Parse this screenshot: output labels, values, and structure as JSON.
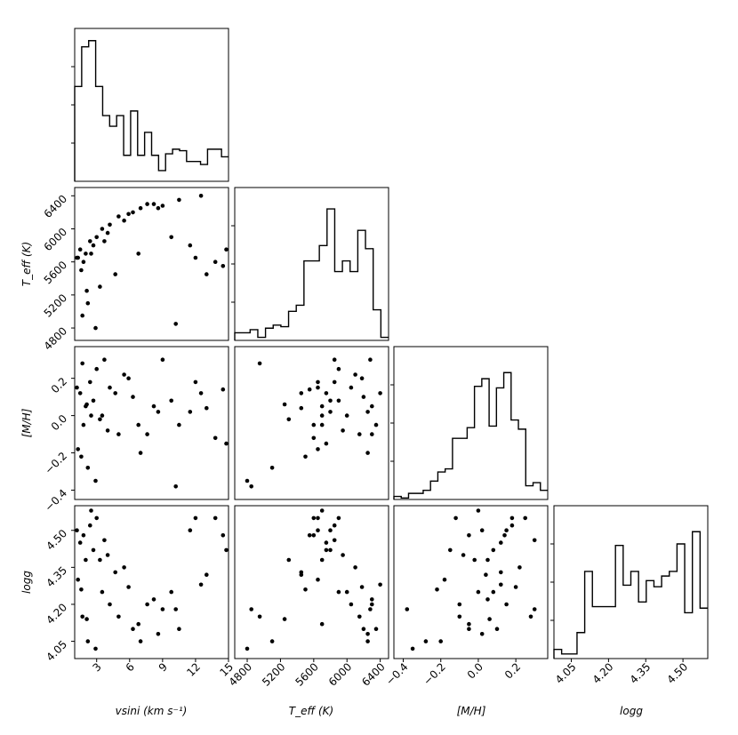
{
  "chart_data": {
    "type": "corner",
    "parameters": [
      {
        "key": "vsini",
        "label": "vsini (km s⁻¹)",
        "range": [
          1,
          15
        ],
        "ticks": [
          3,
          6,
          9,
          12,
          15
        ]
      },
      {
        "key": "teff",
        "label": "T_eff (K)",
        "range": [
          4650,
          6500
        ],
        "ticks": [
          4800,
          5200,
          5600,
          6000,
          6400
        ]
      },
      {
        "key": "mh",
        "label": "[M/H]",
        "range": [
          -0.45,
          0.37
        ],
        "ticks": [
          -0.4,
          -0.2,
          0.0,
          0.2
        ]
      },
      {
        "key": "logg",
        "label": "logg",
        "range": [
          3.98,
          4.6
        ],
        "ticks": [
          4.05,
          4.2,
          4.35,
          4.5
        ]
      }
    ],
    "tick_text": {
      "vsini": [
        "3",
        "6",
        "9",
        "12",
        "15"
      ],
      "teff": [
        "4800",
        "5200",
        "5600",
        "6000",
        "6400"
      ],
      "mh": [
        "−0.4",
        "−0.2",
        "0.0",
        "0.2"
      ],
      "logg": [
        "4.05",
        "4.20",
        "4.35",
        "4.50"
      ]
    },
    "histograms": {
      "vsini": [
        0.62,
        0.88,
        0.92,
        0.62,
        0.43,
        0.36,
        0.43,
        0.17,
        0.46,
        0.17,
        0.32,
        0.17,
        0.07,
        0.18,
        0.21,
        0.2,
        0.13,
        0.13,
        0.11,
        0.21,
        0.21,
        0.16
      ],
      "teff": [
        0.05,
        0.05,
        0.07,
        0.02,
        0.08,
        0.1,
        0.09,
        0.19,
        0.23,
        0.52,
        0.52,
        0.62,
        0.86,
        0.45,
        0.52,
        0.45,
        0.72,
        0.6,
        0.2,
        0.02
      ],
      "mh": [
        0.02,
        0.01,
        0.04,
        0.04,
        0.06,
        0.12,
        0.18,
        0.2,
        0.4,
        0.4,
        0.47,
        0.74,
        0.79,
        0.48,
        0.73,
        0.83,
        0.52,
        0.46,
        0.09,
        0.11,
        0.06
      ],
      "logg": [
        0.06,
        0.03,
        0.03,
        0.17,
        0.57,
        0.34,
        0.34,
        0.34,
        0.74,
        0.48,
        0.57,
        0.37,
        0.51,
        0.47,
        0.54,
        0.57,
        0.75,
        0.3,
        0.83,
        0.33
      ]
    },
    "samples": [
      {
        "vsini": 1.5,
        "teff": 5750,
        "mh": 0.12,
        "logg": 4.45
      },
      {
        "vsini": 2.0,
        "teff": 5700,
        "mh": 0.05,
        "logg": 4.38
      },
      {
        "vsini": 2.4,
        "teff": 5850,
        "mh": 0.18,
        "logg": 4.52
      },
      {
        "vsini": 1.8,
        "teff": 5600,
        "mh": -0.05,
        "logg": 4.48
      },
      {
        "vsini": 3.0,
        "teff": 5900,
        "mh": 0.25,
        "logg": 4.55
      },
      {
        "vsini": 2.7,
        "teff": 5800,
        "mh": 0.08,
        "logg": 4.42
      },
      {
        "vsini": 1.3,
        "teff": 5650,
        "mh": -0.18,
        "logg": 4.3
      },
      {
        "vsini": 3.5,
        "teff": 6000,
        "mh": 0.0,
        "logg": 4.25
      },
      {
        "vsini": 4.2,
        "teff": 6050,
        "mh": 0.15,
        "logg": 4.2
      },
      {
        "vsini": 5.0,
        "teff": 6150,
        "mh": -0.1,
        "logg": 4.15
      },
      {
        "vsini": 5.5,
        "teff": 6100,
        "mh": 0.22,
        "logg": 4.35
      },
      {
        "vsini": 6.3,
        "teff": 6200,
        "mh": 0.1,
        "logg": 4.1
      },
      {
        "vsini": 7.0,
        "teff": 6250,
        "mh": -0.2,
        "logg": 4.05
      },
      {
        "vsini": 8.2,
        "teff": 6300,
        "mh": 0.05,
        "logg": 4.22
      },
      {
        "vsini": 9.0,
        "teff": 6280,
        "mh": 0.3,
        "logg": 4.18
      },
      {
        "vsini": 10.5,
        "teff": 6350,
        "mh": -0.05,
        "logg": 4.1
      },
      {
        "vsini": 12.5,
        "teff": 6400,
        "mh": 0.12,
        "logg": 4.28
      },
      {
        "vsini": 13.8,
        "teff": 5600,
        "mh": -0.12,
        "logg": 4.55
      },
      {
        "vsini": 14.5,
        "teff": 5550,
        "mh": 0.14,
        "logg": 4.48
      },
      {
        "vsini": 11.5,
        "teff": 5800,
        "mh": 0.02,
        "logg": 4.5
      },
      {
        "vsini": 2.2,
        "teff": 5100,
        "mh": -0.28,
        "logg": 4.05
      },
      {
        "vsini": 1.7,
        "teff": 4950,
        "mh": 0.28,
        "logg": 4.15
      },
      {
        "vsini": 2.9,
        "teff": 4800,
        "mh": -0.35,
        "logg": 4.02
      },
      {
        "vsini": 3.3,
        "teff": 5300,
        "mh": -0.02,
        "logg": 4.38
      },
      {
        "vsini": 4.7,
        "teff": 5450,
        "mh": 0.12,
        "logg": 4.33
      },
      {
        "vsini": 6.8,
        "teff": 5700,
        "mh": -0.05,
        "logg": 4.12
      },
      {
        "vsini": 9.8,
        "teff": 5900,
        "mh": 0.08,
        "logg": 4.25
      },
      {
        "vsini": 10.2,
        "teff": 4850,
        "mh": -0.38,
        "logg": 4.18
      },
      {
        "vsini": 12.0,
        "teff": 5650,
        "mh": 0.18,
        "logg": 4.55
      },
      {
        "vsini": 13.0,
        "teff": 5450,
        "mh": 0.04,
        "logg": 4.32
      },
      {
        "vsini": 14.8,
        "teff": 5750,
        "mh": -0.15,
        "logg": 4.42
      },
      {
        "vsini": 8.6,
        "teff": 6250,
        "mh": 0.02,
        "logg": 4.08
      },
      {
        "vsini": 7.6,
        "teff": 6300,
        "mh": -0.1,
        "logg": 4.2
      },
      {
        "vsini": 5.9,
        "teff": 6180,
        "mh": 0.2,
        "logg": 4.27
      },
      {
        "vsini": 4.0,
        "teff": 5950,
        "mh": -0.08,
        "logg": 4.4
      },
      {
        "vsini": 3.7,
        "teff": 5850,
        "mh": 0.3,
        "logg": 4.46
      },
      {
        "vsini": 2.5,
        "teff": 5700,
        "mh": 0.0,
        "logg": 4.58
      },
      {
        "vsini": 1.2,
        "teff": 5650,
        "mh": 0.15,
        "logg": 4.5
      },
      {
        "vsini": 1.6,
        "teff": 5500,
        "mh": -0.22,
        "logg": 4.26
      },
      {
        "vsini": 2.1,
        "teff": 5250,
        "mh": 0.06,
        "logg": 4.14
      }
    ]
  }
}
